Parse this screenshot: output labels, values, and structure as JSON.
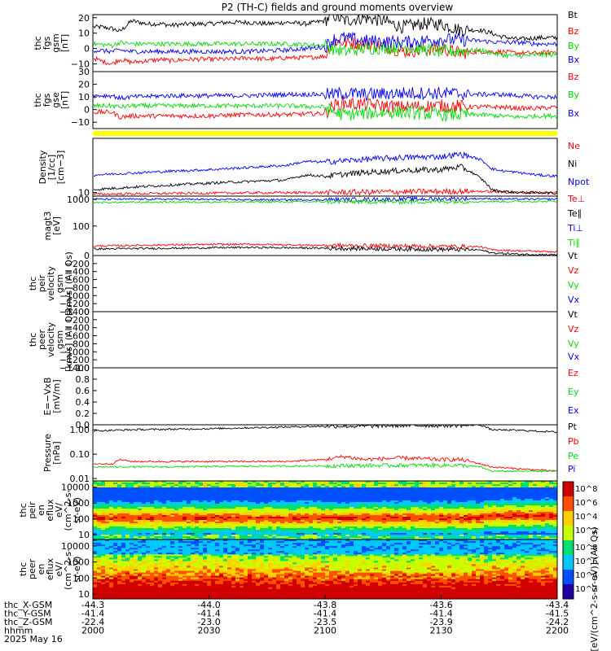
{
  "title": "P2 (TH-C) fields and ground moments overview",
  "colors": {
    "black": "#000000",
    "red": "#ff0000",
    "green": "#00dd00",
    "blue": "#0000ff",
    "yellow": "#ffff00"
  },
  "chart_data": [
    {
      "type": "line",
      "panel": "fgs_gsm",
      "ylabel": [
        "thc",
        "fgs",
        "gsm",
        "[nT]"
      ],
      "yticks": [
        "20",
        "10",
        "0",
        "−10"
      ],
      "ylim": [
        -15,
        22
      ],
      "series": [
        {
          "name": "Bt",
          "color": "black",
          "x": [
            0,
            2,
            5,
            7,
            10,
            14,
            18,
            20,
            25,
            30,
            35,
            40,
            45,
            50,
            55,
            60,
            62,
            65,
            70,
            75,
            80,
            85,
            90,
            95,
            100,
            103,
            105,
            110,
            115,
            120
          ],
          "y": [
            14,
            14,
            13,
            11,
            18,
            16,
            16,
            15,
            16,
            16,
            17,
            17,
            16,
            17,
            16,
            18,
            22,
            18,
            20,
            18,
            14,
            16,
            16,
            12,
            12,
            10,
            8,
            6,
            7,
            7
          ]
        },
        {
          "name": "Bz",
          "color": "red",
          "x": [
            0,
            2,
            5,
            7,
            10,
            14,
            18,
            20,
            25,
            30,
            35,
            40,
            45,
            50,
            55,
            60,
            62,
            65,
            70,
            75,
            80,
            85,
            90,
            95,
            100,
            103,
            105,
            110,
            115,
            120
          ],
          "y": [
            -6,
            -8,
            -10,
            -7,
            -9,
            -8,
            -7,
            -8,
            -7,
            -7,
            -7,
            -6,
            -7,
            -6,
            -6,
            -5,
            5,
            4,
            3,
            2,
            -2,
            -1,
            0,
            -3,
            -2,
            -2,
            -2,
            -3,
            -3,
            -2
          ]
        },
        {
          "name": "By",
          "color": "green",
          "x": [
            0,
            5,
            7,
            10,
            20,
            30,
            40,
            50,
            60,
            62,
            65,
            70,
            80,
            90,
            100,
            105,
            110,
            115,
            120
          ],
          "y": [
            3,
            2,
            4,
            3,
            3,
            3,
            3,
            3,
            2,
            0,
            -2,
            0,
            1,
            -2,
            -1,
            -4,
            -5,
            -4,
            -4
          ]
        },
        {
          "name": "Bx",
          "color": "blue",
          "x": [
            0,
            5,
            7,
            10,
            20,
            30,
            40,
            50,
            60,
            62,
            65,
            70,
            80,
            90,
            100,
            105,
            110,
            115,
            120
          ],
          "y": [
            -1,
            -2,
            -1,
            -2,
            -2,
            -2,
            -2,
            -1,
            1,
            6,
            7,
            5,
            4,
            6,
            5,
            4,
            4,
            3,
            3
          ]
        }
      ]
    },
    {
      "type": "line",
      "panel": "fgs_gse",
      "ylabel": [
        "thc",
        "fgs",
        "gse",
        "[nT]"
      ],
      "yticks": [
        "30",
        "20",
        "10",
        "0",
        "−10"
      ],
      "ylim": [
        -15,
        30
      ],
      "series": [
        {
          "name": "Bz",
          "color": "red",
          "x": [
            0,
            5,
            7,
            10,
            20,
            30,
            40,
            50,
            60,
            62,
            65,
            70,
            80,
            90,
            100,
            105,
            110,
            115,
            120
          ],
          "y": [
            -2,
            -2,
            -6,
            -5,
            -5,
            -5,
            -4,
            -4,
            -3,
            3,
            5,
            4,
            2,
            3,
            2,
            2,
            1,
            1,
            2
          ]
        },
        {
          "name": "By",
          "color": "green",
          "x": [
            0,
            5,
            7,
            10,
            20,
            30,
            40,
            50,
            60,
            62,
            65,
            70,
            80,
            90,
            100,
            105,
            110,
            115,
            120
          ],
          "y": [
            3,
            3,
            2,
            3,
            3,
            3,
            3,
            3,
            2,
            -2,
            -4,
            -3,
            -2,
            -4,
            -4,
            -5,
            -6,
            -5,
            -5
          ]
        },
        {
          "name": "Bx",
          "color": "blue",
          "x": [
            0,
            5,
            7,
            10,
            20,
            30,
            40,
            50,
            60,
            62,
            65,
            70,
            80,
            90,
            100,
            105,
            110,
            115,
            120
          ],
          "y": [
            11,
            11,
            9,
            10,
            11,
            11,
            11,
            12,
            12,
            12,
            13,
            12,
            13,
            13,
            12,
            12,
            11,
            10,
            10
          ]
        }
      ]
    },
    {
      "type": "line",
      "panel": "density",
      "ylabel": [
        "Density",
        "[1/cc]",
        "[cm−3]"
      ],
      "yticks": [
        "10"
      ],
      "yscale": "log",
      "ylim": [
        8,
        300
      ],
      "series": [
        {
          "name": "Ne",
          "color": "red",
          "x": [
            0,
            20,
            40,
            60,
            80,
            100,
            110,
            120
          ],
          "y": [
            9,
            9.5,
            9.8,
            10,
            10.5,
            10.8,
            10,
            10
          ]
        },
        {
          "name": "Ni",
          "color": "black",
          "x": [
            0,
            10,
            20,
            30,
            40,
            50,
            55,
            60,
            70,
            80,
            90,
            95,
            100,
            103,
            105,
            110,
            115,
            120
          ],
          "y": [
            12,
            14,
            16,
            18,
            20,
            22,
            30,
            28,
            35,
            40,
            42,
            50,
            25,
            12,
            11,
            10,
            10,
            9.5
          ]
        },
        {
          "name": "Npot",
          "color": "blue",
          "x": [
            0,
            10,
            20,
            30,
            40,
            50,
            55,
            60,
            70,
            80,
            90,
            95,
            100,
            103,
            105,
            110,
            115,
            120
          ],
          "y": [
            30,
            34,
            38,
            42,
            48,
            55,
            70,
            68,
            80,
            90,
            95,
            110,
            80,
            45,
            40,
            35,
            30,
            28
          ]
        }
      ]
    },
    {
      "type": "line",
      "panel": "temperature",
      "ylabel": [
        "magt3",
        "[eV]"
      ],
      "yticks": [
        "1000",
        "100"
      ],
      "yscale": "log",
      "ylim": [
        8,
        1300
      ],
      "series": [
        {
          "name": "Te⊥",
          "color": "red",
          "x": [
            0,
            20,
            40,
            60,
            80,
            100,
            103,
            110,
            120
          ],
          "y": [
            18,
            20,
            21,
            19,
            18,
            17,
            13,
            12,
            11
          ]
        },
        {
          "name": "Te∥",
          "color": "black",
          "x": [
            0,
            20,
            40,
            60,
            80,
            100,
            103,
            110,
            120
          ],
          "y": [
            14,
            15,
            16,
            15,
            14,
            13,
            10,
            9,
            8.5
          ]
        },
        {
          "name": "Ti⊥",
          "color": "blue",
          "x": [
            0,
            20,
            40,
            60,
            80,
            100,
            110,
            120
          ],
          "y": [
            1000,
            1000,
            950,
            950,
            1000,
            1050,
            1000,
            1000
          ]
        },
        {
          "name": "Ti∥",
          "color": "green",
          "x": [
            0,
            20,
            40,
            60,
            80,
            100,
            110,
            120
          ],
          "y": [
            750,
            780,
            790,
            800,
            800,
            820,
            820,
            830
          ]
        }
      ]
    },
    {
      "type": "line",
      "panel": "peir_velocity",
      "ylabel": [
        "thc",
        "peir",
        "velocity",
        "gsm",
        "[km/s] (All Qs)"
      ],
      "yticks": [
        "0",
        "−200",
        "−400",
        "−600",
        "−800",
        "−1000",
        "−1200",
        "−1400"
      ],
      "ylim": [
        -1400,
        0
      ],
      "series": [
        {
          "name": "Vt",
          "color": "black",
          "x": [],
          "y": []
        },
        {
          "name": "Vz",
          "color": "red",
          "x": [],
          "y": []
        },
        {
          "name": "Vy",
          "color": "green",
          "x": [],
          "y": []
        },
        {
          "name": "Vx",
          "color": "blue",
          "x": [],
          "y": []
        }
      ]
    },
    {
      "type": "line",
      "panel": "peer_velocity",
      "ylabel": [
        "thc",
        "peer",
        "velocity",
        "gsm",
        "[km/s] (All Qs)"
      ],
      "yticks": [
        "0",
        "−200",
        "−400",
        "−600",
        "−800",
        "−1000",
        "−1200",
        "−1400"
      ],
      "ylim": [
        -1400,
        0
      ],
      "series": [
        {
          "name": "Vt",
          "color": "black",
          "x": [],
          "y": []
        },
        {
          "name": "Vz",
          "color": "red",
          "x": [],
          "y": []
        },
        {
          "name": "Vy",
          "color": "green",
          "x": [],
          "y": []
        },
        {
          "name": "Vx",
          "color": "blue",
          "x": [],
          "y": []
        }
      ]
    },
    {
      "type": "line",
      "panel": "e_field",
      "ylabel": [
        "E=−VxB",
        "[mV/m]"
      ],
      "yticks": [
        "1.0",
        "0.8",
        "0.6",
        "0.4",
        "0.2",
        "0.0"
      ],
      "ylim": [
        0,
        1
      ],
      "series": [
        {
          "name": "Ez",
          "color": "red",
          "x": [],
          "y": []
        },
        {
          "name": "Ey",
          "color": "green",
          "x": [],
          "y": []
        },
        {
          "name": "Ex",
          "color": "blue",
          "x": [],
          "y": []
        }
      ]
    },
    {
      "type": "line",
      "panel": "pressure",
      "ylabel": [
        "Pressure",
        "[nPa]"
      ],
      "yticks": [
        "1.00",
        "0.10",
        "0.01"
      ],
      "yscale": "log",
      "ylim": [
        0.008,
        1.6
      ],
      "series": [
        {
          "name": "Pt",
          "color": "black",
          "x": [
            0,
            10,
            20,
            30,
            40,
            50,
            60,
            70,
            80,
            90,
            95,
            100,
            103,
            110,
            120
          ],
          "y": [
            0.9,
            1.0,
            1.05,
            1.1,
            1.2,
            1.3,
            1.4,
            1.4,
            1.5,
            1.5,
            1.5,
            1.6,
            1.0,
            0.95,
            0.8
          ]
        },
        {
          "name": "Pb",
          "color": "red",
          "x": [
            0,
            5,
            7,
            10,
            20,
            30,
            40,
            50,
            60,
            65,
            70,
            80,
            90,
            95,
            100,
            103,
            110,
            120
          ],
          "y": [
            0.04,
            0.04,
            0.06,
            0.05,
            0.05,
            0.05,
            0.05,
            0.05,
            0.06,
            0.08,
            0.06,
            0.07,
            0.06,
            0.06,
            0.04,
            0.03,
            0.025,
            0.02
          ]
        },
        {
          "name": "Pe",
          "color": "green",
          "x": [
            0,
            20,
            40,
            60,
            80,
            95,
            100,
            103,
            110,
            120
          ],
          "y": [
            0.03,
            0.03,
            0.032,
            0.033,
            0.035,
            0.035,
            0.03,
            0.02,
            0.02,
            0.02
          ]
        },
        {
          "name": "Pi",
          "color": "blue",
          "x": [],
          "y": []
        }
      ]
    },
    {
      "type": "heatmap",
      "panel": "peir_en_eflux",
      "ylabel": [
        "thc",
        "peir",
        "en",
        "eflux",
        "eV/",
        "(cm^2-s-",
        "sr-eV)"
      ],
      "yticks": [
        "10000",
        "1000",
        "100",
        "10"
      ],
      "yscale": "log",
      "ylim": [
        5,
        25000
      ]
    },
    {
      "type": "heatmap",
      "panel": "peer_en_eflux",
      "ylabel": [
        "thc",
        "peer",
        "en",
        "eflux",
        "eV/",
        "(cm^2-s-",
        "sr-eV)"
      ],
      "yticks": [
        "10000",
        "1000",
        "100",
        "10"
      ],
      "yscale": "log",
      "ylim": [
        5,
        25000
      ]
    }
  ],
  "colorbar": {
    "label": "[eV/(cm^2-s-sr-eV)] (All Qs)",
    "ticks": [
      "10^8",
      "10^6",
      "10^4",
      "10^2"
    ]
  },
  "xaxis": {
    "range_minutes": [
      0,
      120
    ],
    "tick_minutes": [
      0,
      30,
      60,
      90,
      120
    ],
    "row_labels": [
      "thc_X-GSM",
      "thc_Y-GSM",
      "thc_Z-GSM",
      "hhmm",
      "2025 May 16"
    ],
    "columns": [
      [
        "-44.3",
        "-41.4",
        "-22.4",
        "2000"
      ],
      [
        "-44.0",
        "-41.4",
        "-23.0",
        "2030"
      ],
      [
        "-43.8",
        "-41.4",
        "-23.5",
        "2100"
      ],
      [
        "-43.6",
        "-41.4",
        "-23.9",
        "2130"
      ],
      [
        "-43.4",
        "-41.5",
        "-24.2",
        "2200"
      ]
    ]
  }
}
